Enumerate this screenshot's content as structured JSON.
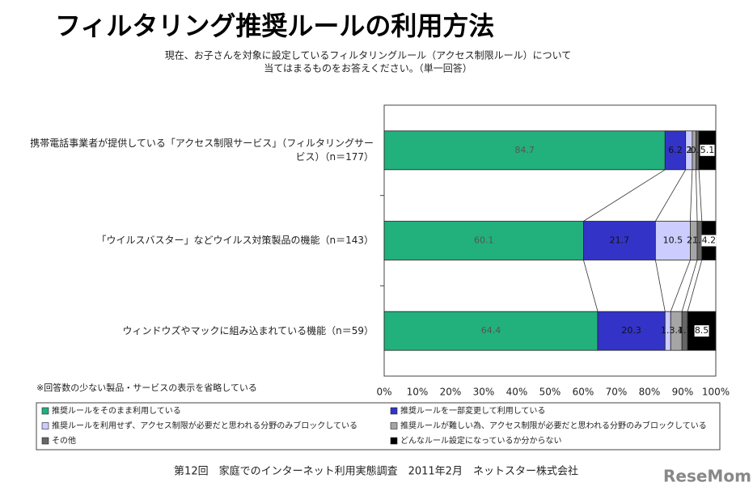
{
  "chart_data": {
    "type": "stacked-barh",
    "title": "フィルタリング推奨ルールの利用方法",
    "subtitle": [
      "現在、お子さんを対象に設定しているフィルタリングルール（アクセス制限ルール）について",
      "当てはまるものをお答えください。（単一回答）"
    ],
    "note": "※回答数の少ない製品・サービスの表示を省略している",
    "source": "第12回　家庭でのインターネット利用実態調査　2011年2月　ネットスター株式会社",
    "logo": "ReseMom",
    "categories": [
      "携帯電話事業者が提供している「アクセス制限サービス」（フィルタリングサービス）（n＝177）",
      "「ウイルスバスター」などウイルス対策製品の機能（n＝143）",
      "ウィンドウズやマックに組み込まれている機能（n＝59）"
    ],
    "series": [
      {
        "name": "推奨ルールをそのまま利用している",
        "color": "#22b07d",
        "values": [
          84.7,
          60.1,
          64.4
        ]
      },
      {
        "name": "推奨ルールを一部変更して利用している",
        "color": "#3333c8",
        "values": [
          6.2,
          21.7,
          20.3
        ]
      },
      {
        "name": "推奨ルールを利用せず、アクセス制限が必要だと思われる分野のみブロックしている",
        "color": "#ccccff",
        "values": [
          2.0,
          10.5,
          1.7
        ]
      },
      {
        "name": "推奨ルールが難しい為、アクセス制限が必要だと思われる分野のみブロックしている",
        "color": "#a6a6a6",
        "values": [
          1.1,
          2.1,
          3.4
        ]
      },
      {
        "name": "その他",
        "color": "#666666",
        "values": [
          0.9,
          1.4,
          1.7
        ]
      },
      {
        "name": "どんなルール設定になっているか分からない",
        "color": "#000000",
        "values": [
          5.1,
          4.2,
          8.5
        ]
      }
    ],
    "xlim": [
      0,
      100
    ],
    "xticks": [
      {
        "value": 0,
        "label": "0%"
      },
      {
        "value": 10,
        "label": "10%"
      },
      {
        "value": 20,
        "label": "20%"
      },
      {
        "value": 30,
        "label": "30%"
      },
      {
        "value": 40,
        "label": "40%"
      },
      {
        "value": 50,
        "label": "50%"
      },
      {
        "value": 60,
        "label": "60%"
      },
      {
        "value": 70,
        "label": "70%"
      },
      {
        "value": 80,
        "label": "80%"
      },
      {
        "value": 90,
        "label": "90%"
      },
      {
        "value": 100,
        "label": "100%"
      }
    ]
  }
}
